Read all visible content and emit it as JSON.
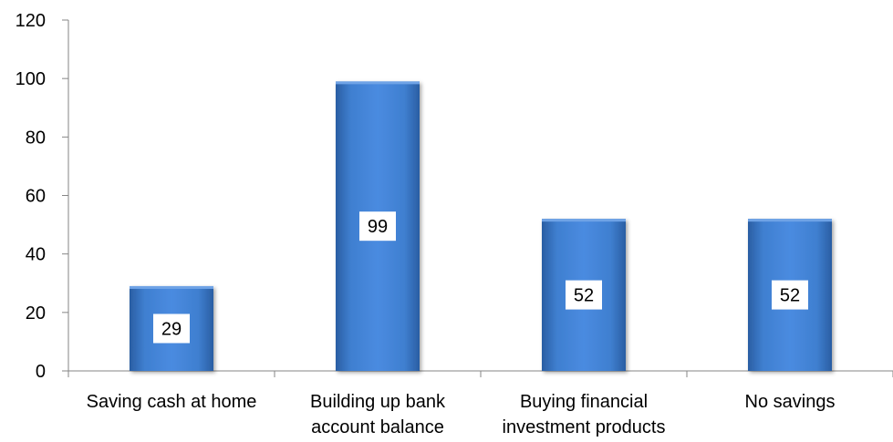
{
  "chart_data": {
    "type": "bar",
    "title": "",
    "xlabel": "",
    "ylabel": "",
    "ylim": [
      0,
      120
    ],
    "yticks": [
      0,
      20,
      40,
      60,
      80,
      100,
      120
    ],
    "grid": false,
    "legend": "none",
    "categories": [
      [
        "Saving cash at home"
      ],
      [
        "Building up bank",
        "account balance"
      ],
      [
        "Buying financial",
        "investment products"
      ],
      [
        "No savings"
      ]
    ],
    "values": [
      29,
      99,
      52,
      52
    ],
    "data_labels": [
      "29",
      "99",
      "52",
      "52"
    ],
    "colors": {
      "bar": "#3a78c8",
      "bar_dark": "#1f4f8f",
      "axis": "#868686",
      "label_box": "#ffffff"
    }
  }
}
